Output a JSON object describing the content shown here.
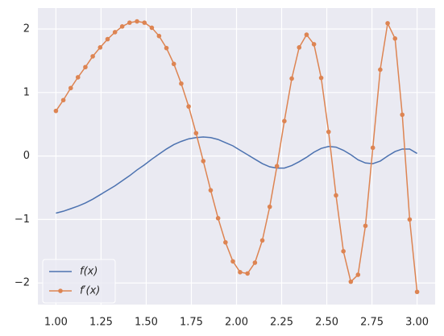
{
  "chart_data": {
    "type": "line",
    "x": [
      1.0,
      1.041,
      1.082,
      1.122,
      1.163,
      1.204,
      1.245,
      1.286,
      1.327,
      1.367,
      1.408,
      1.449,
      1.49,
      1.531,
      1.571,
      1.612,
      1.653,
      1.694,
      1.735,
      1.776,
      1.816,
      1.857,
      1.898,
      1.939,
      1.98,
      2.02,
      2.061,
      2.102,
      2.143,
      2.184,
      2.224,
      2.265,
      2.306,
      2.347,
      2.388,
      2.429,
      2.469,
      2.51,
      2.551,
      2.592,
      2.633,
      2.673,
      2.714,
      2.755,
      2.796,
      2.837,
      2.878,
      2.918,
      2.959,
      3.0
    ],
    "series": [
      {
        "name": "f(x)",
        "color": "#4c72b0",
        "marker": false,
        "values": [
          -0.9,
          -0.87,
          -0.83,
          -0.79,
          -0.74,
          -0.68,
          -0.61,
          -0.54,
          -0.47,
          -0.39,
          -0.31,
          -0.22,
          -0.14,
          -0.05,
          0.03,
          0.11,
          0.18,
          0.23,
          0.27,
          0.29,
          0.3,
          0.29,
          0.26,
          0.21,
          0.16,
          0.09,
          0.02,
          -0.05,
          -0.12,
          -0.17,
          -0.19,
          -0.19,
          -0.15,
          -0.09,
          -0.02,
          0.06,
          0.12,
          0.15,
          0.14,
          0.09,
          0.02,
          -0.06,
          -0.11,
          -0.12,
          -0.08,
          0.0,
          0.07,
          0.11,
          0.11,
          0.04
        ]
      },
      {
        "name": "f′(x)",
        "color": "#dd8452",
        "marker": true,
        "values": [
          0.71,
          0.88,
          1.07,
          1.24,
          1.4,
          1.57,
          1.71,
          1.84,
          1.95,
          2.04,
          2.1,
          2.12,
          2.1,
          2.02,
          1.89,
          1.7,
          1.45,
          1.14,
          0.78,
          0.36,
          -0.08,
          -0.54,
          -0.98,
          -1.36,
          -1.66,
          -1.83,
          -1.85,
          -1.68,
          -1.33,
          -0.8,
          -0.16,
          0.55,
          1.22,
          1.71,
          1.91,
          1.76,
          1.23,
          0.38,
          -0.62,
          -1.5,
          -1.98,
          -1.87,
          -1.1,
          0.13,
          1.36,
          2.09,
          1.85,
          0.65,
          -1.0,
          -2.14
        ]
      }
    ],
    "xlim": [
      0.9,
      3.1
    ],
    "ylim": [
      -2.34,
      2.33
    ],
    "xticks": [
      {
        "value": 1.0,
        "label": "1.00"
      },
      {
        "value": 1.25,
        "label": "1.25"
      },
      {
        "value": 1.5,
        "label": "1.50"
      },
      {
        "value": 1.75,
        "label": "1.75"
      },
      {
        "value": 2.0,
        "label": "2.00"
      },
      {
        "value": 2.25,
        "label": "2.25"
      },
      {
        "value": 2.5,
        "label": "2.50"
      },
      {
        "value": 2.75,
        "label": "2.75"
      },
      {
        "value": 3.0,
        "label": "3.00"
      }
    ],
    "yticks": [
      {
        "value": -2,
        "label": "−2"
      },
      {
        "value": -1,
        "label": "−1"
      },
      0,
      1,
      2
    ],
    "grid": true,
    "legend": "lower left"
  }
}
